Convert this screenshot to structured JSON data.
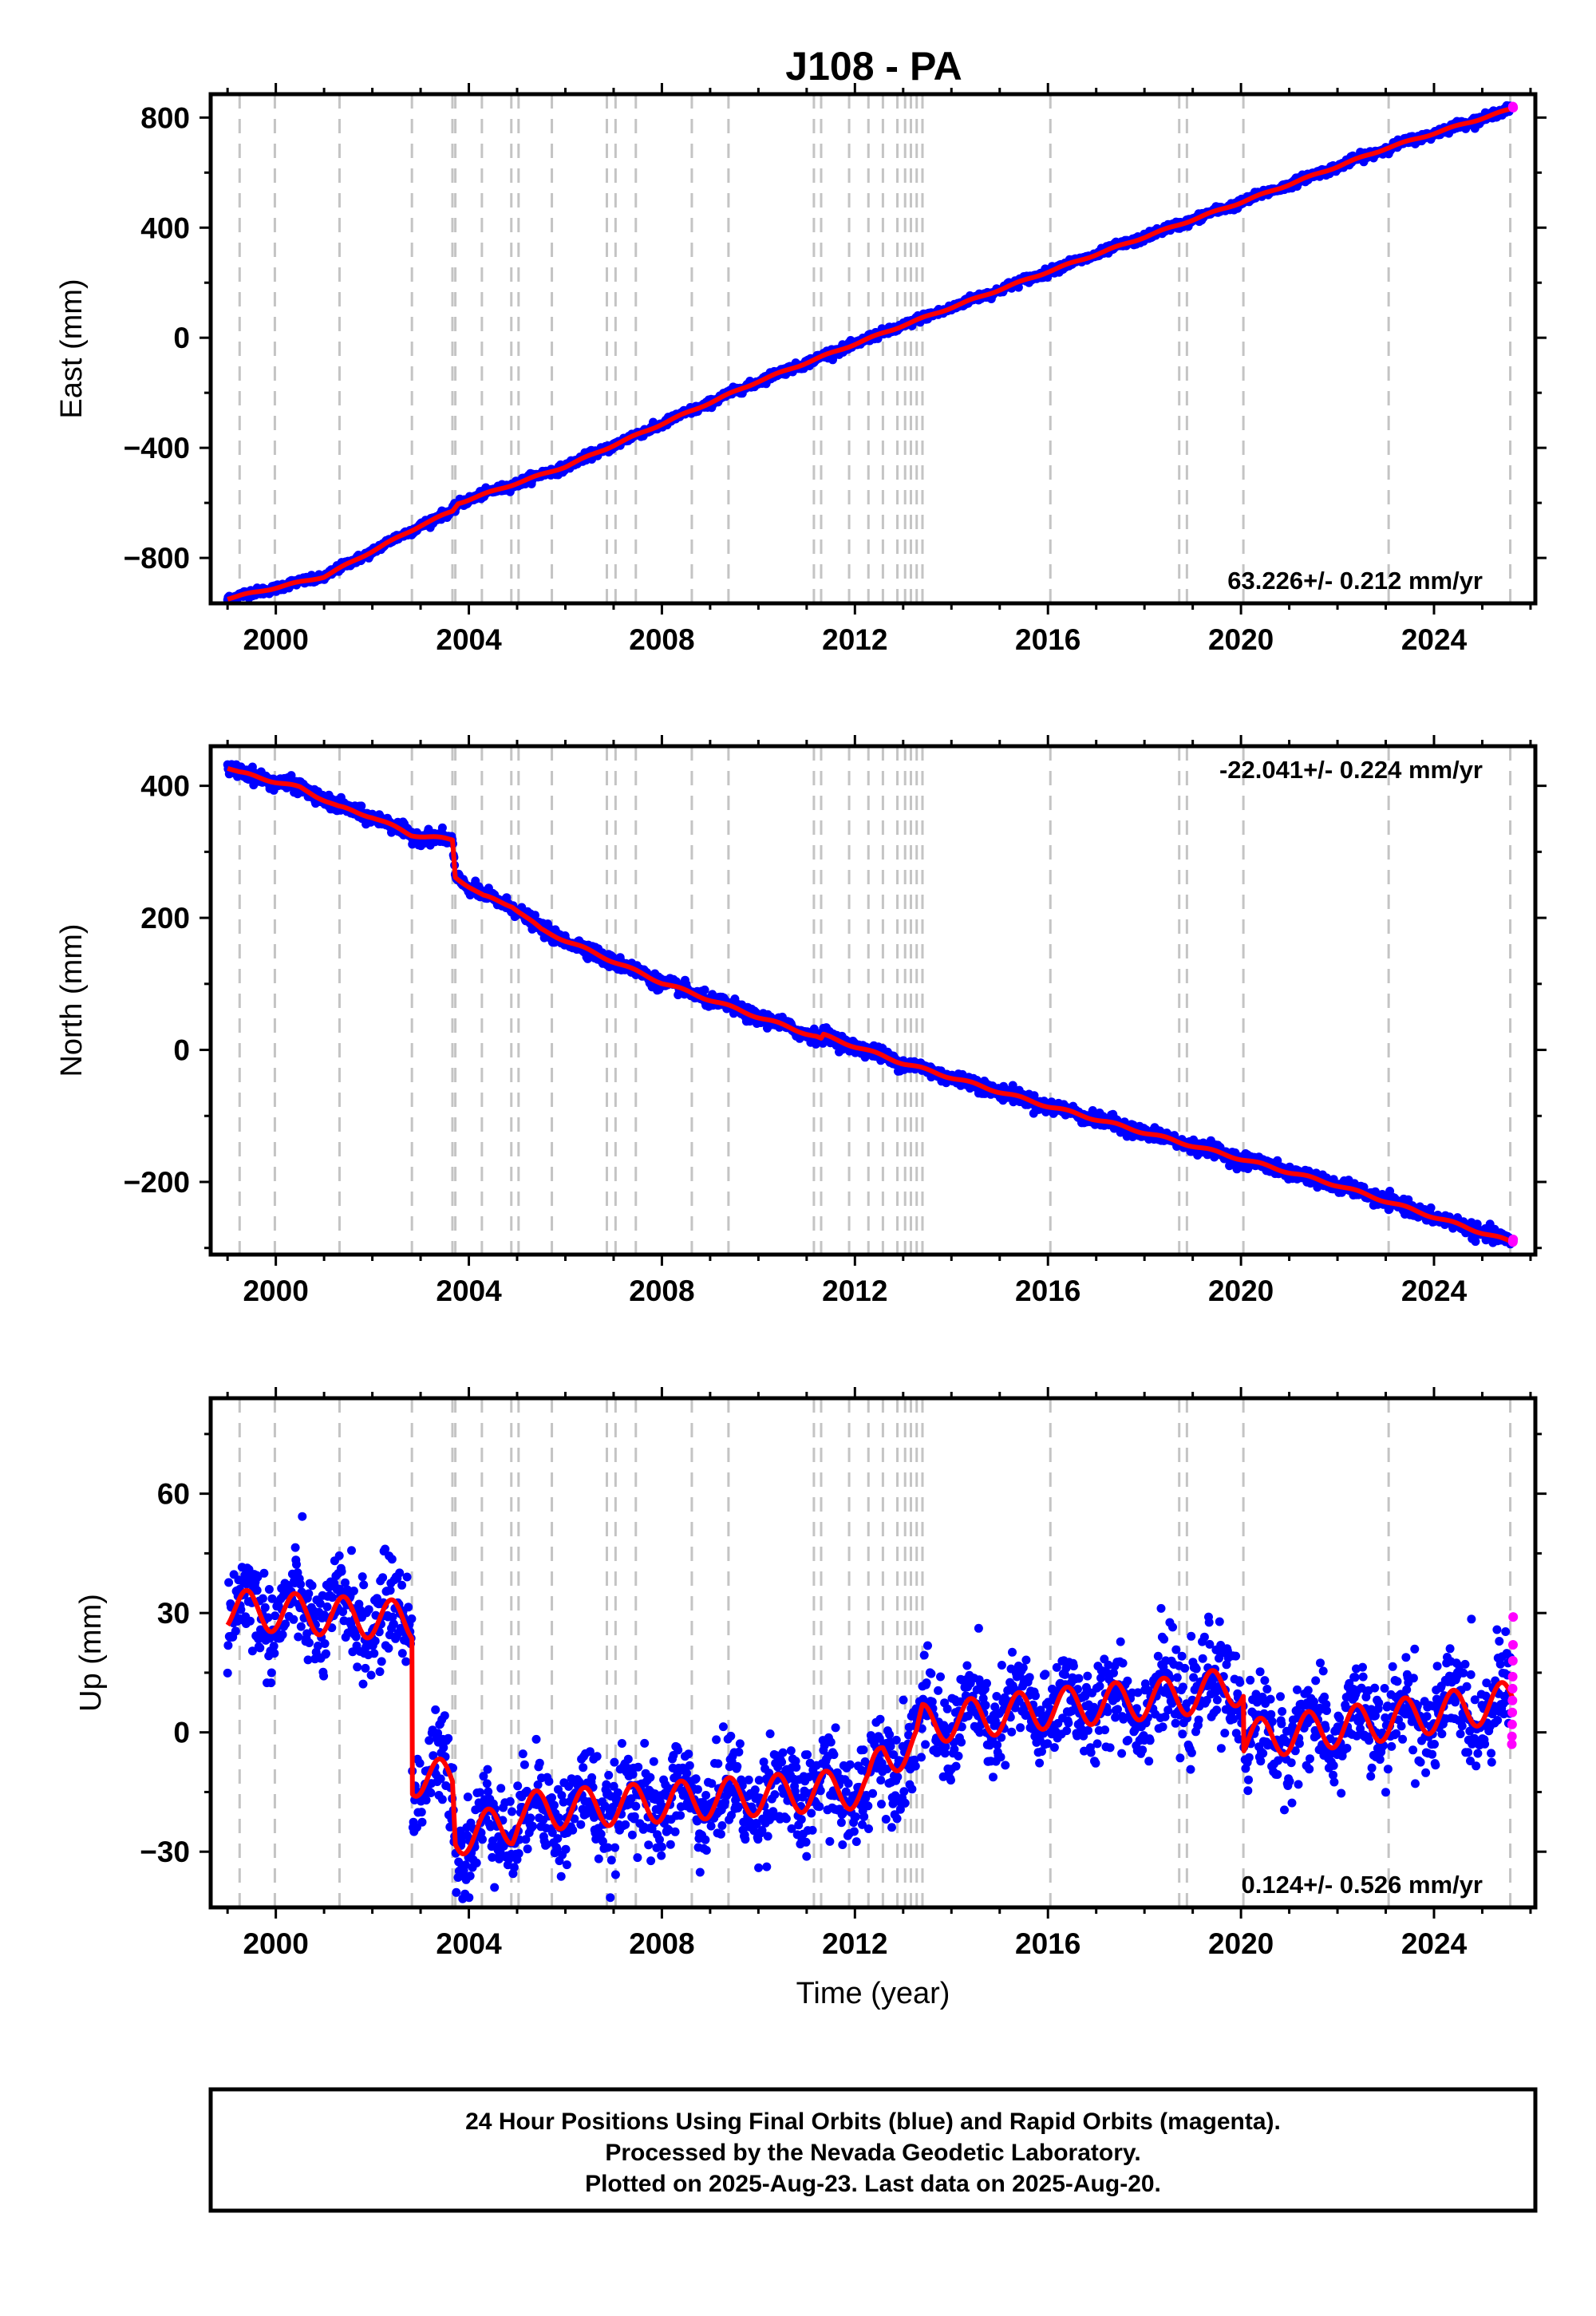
{
  "chart_data": {
    "type": "scatter",
    "title": "J108 - PA",
    "xlabel": "Time (year)",
    "xlim": [
      1998.65,
      2026.1
    ],
    "xticks": [
      2000,
      2004,
      2008,
      2012,
      2016,
      2020,
      2024
    ],
    "xtick_labels": [
      "2000",
      "2004",
      "2008",
      "2012",
      "2016",
      "2020",
      "2024"
    ],
    "data_start": 1999.0,
    "data_end": 2025.64,
    "rapid_start": 2025.58,
    "equipment_changes": [
      1999.25,
      1999.98,
      2001.32,
      2002.82,
      2003.66,
      2003.72,
      2004.27,
      2004.88,
      2005.03,
      2005.72,
      2006.86,
      2007.04,
      2007.46,
      2008.62,
      2009.38,
      2011.15,
      2011.3,
      2011.88,
      2012.28,
      2012.58,
      2012.88,
      2013.04,
      2013.16,
      2013.28,
      2013.4,
      2016.05,
      2018.72,
      2018.88,
      2020.05,
      2023.06,
      2025.58
    ],
    "colors": {
      "final": "#0000ff",
      "rapid": "#ff00ff",
      "model": "#ff0000",
      "event_line": "#c4c4c4"
    },
    "panels": [
      {
        "name": "East",
        "ylabel": "East (mm)",
        "ylim": [
          -965,
          885
        ],
        "yticks": [
          -800,
          -400,
          0,
          400,
          800
        ],
        "ytick_labels": [
          "−800",
          "−400",
          "0",
          "400",
          "800"
        ],
        "rate_label": "63.226+/- 0.212 mm/yr",
        "rate_position": "bottom-right",
        "noise": 7,
        "model_points": [
          [
            1999.0,
            -948
          ],
          [
            2001.0,
            -868
          ],
          [
            2003.0,
            -682
          ],
          [
            2003.66,
            -630
          ],
          [
            2003.78,
            -601
          ],
          [
            2006.0,
            -468
          ],
          [
            2010.0,
            -158
          ],
          [
            2013.0,
            45
          ],
          [
            2016.0,
            240
          ],
          [
            2020.0,
            492
          ],
          [
            2023.0,
            688
          ],
          [
            2025.64,
            833
          ]
        ],
        "steps": [],
        "seasonal_amp": 3,
        "rapid_values": [
          836,
          838,
          840
        ]
      },
      {
        "name": "North",
        "ylabel": "North (mm)",
        "ylim": [
          -310,
          460
        ],
        "yticks": [
          -200,
          0,
          200,
          400
        ],
        "ytick_labels": [
          "−200",
          "0",
          "200",
          "400"
        ],
        "rate_label": "-22.041+/- 0.224 mm/yr",
        "rate_position": "top-right",
        "noise": 5,
        "model_points": [
          [
            1999.0,
            428
          ],
          [
            1999.25,
            420
          ],
          [
            2000.5,
            397
          ],
          [
            2001.3,
            368
          ],
          [
            2002.0,
            353
          ],
          [
            2002.8,
            326
          ],
          [
            2003.66,
            318
          ],
          [
            2003.72,
            262
          ],
          [
            2004.3,
            233
          ],
          [
            2004.9,
            218
          ],
          [
            2005.5,
            182
          ],
          [
            2008.0,
            102
          ],
          [
            2010.0,
            50
          ],
          [
            2011.2,
            20
          ],
          [
            2011.3,
            16
          ],
          [
            2011.35,
            22
          ],
          [
            2013.0,
            -20
          ],
          [
            2016.0,
            -85
          ],
          [
            2019.0,
            -145
          ],
          [
            2022.0,
            -205
          ],
          [
            2025.64,
            -292
          ]
        ],
        "steps": [],
        "seasonal_amp": 2,
        "rapid_values": [
          -287,
          -289,
          -291
        ]
      },
      {
        "name": "Up",
        "ylabel": "Up (mm)",
        "ylim": [
          -44,
          84
        ],
        "yticks": [
          -30,
          0,
          30,
          60
        ],
        "ytick_labels": [
          "−30",
          "0",
          "30",
          "60"
        ],
        "rate_label": "0.124+/- 0.526 mm/yr",
        "rate_position": "bottom-right",
        "noise": 6,
        "model_points": [
          [
            1999.0,
            31
          ],
          [
            2002.82,
            28
          ],
          [
            2002.83,
            -11
          ],
          [
            2003.66,
            -12
          ],
          [
            2003.72,
            -26
          ],
          [
            2004.9,
            -23
          ],
          [
            2005.03,
            -20
          ],
          [
            2012.28,
            -14
          ],
          [
            2012.58,
            -6
          ],
          [
            2013.28,
            -3
          ],
          [
            2013.4,
            2
          ],
          [
            2016.05,
            6
          ],
          [
            2018.72,
            9
          ],
          [
            2020.05,
            12
          ],
          [
            2020.06,
            -2
          ],
          [
            2023.06,
            3
          ],
          [
            2025.64,
            8
          ]
        ],
        "steps": [],
        "seasonal_amp": 5,
        "rapid_values": [
          29,
          22,
          18,
          14,
          11,
          8,
          5,
          2,
          -1,
          -3
        ]
      }
    ],
    "footer_lines": [
      "24 Hour Positions Using Final Orbits (blue) and Rapid Orbits (magenta).",
      "Processed by the Nevada Geodetic Laboratory.",
      "Plotted on 2025-Aug-23. Last data on 2025-Aug-20."
    ]
  }
}
